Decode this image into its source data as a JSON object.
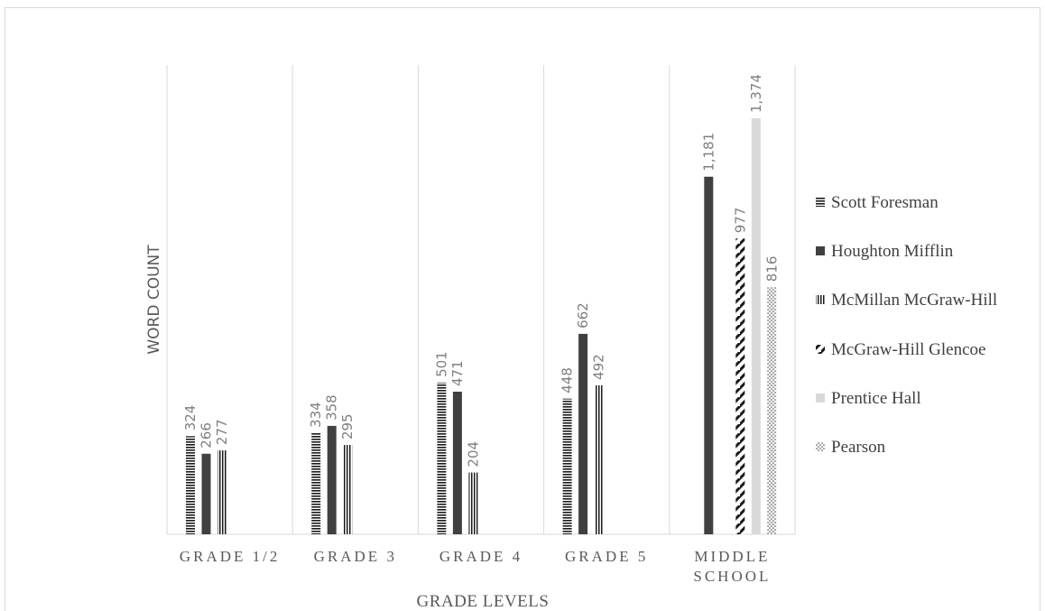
{
  "chart_data": {
    "type": "bar",
    "title": "",
    "xlabel": "GRADE LEVELS",
    "ylabel": "WORD COUNT",
    "ylim": [
      0,
      1550
    ],
    "grid": false,
    "legend_position": "right",
    "categories": [
      "GRADE 1/2",
      "GRADE 3",
      "GRADE 4",
      "GRADE 5",
      "MIDDLE SCHOOL"
    ],
    "series": [
      {
        "name": "Scott Foresman",
        "values": [
          324,
          334,
          501,
          448,
          null
        ],
        "value_labels": [
          "324",
          "334",
          "501",
          "448",
          ""
        ]
      },
      {
        "name": "Houghton Mifflin",
        "values": [
          266,
          358,
          471,
          662,
          1181
        ],
        "value_labels": [
          "266",
          "358",
          "471",
          "662",
          "1,181"
        ]
      },
      {
        "name": "McMillan McGraw-Hill",
        "values": [
          277,
          295,
          204,
          492,
          null
        ],
        "value_labels": [
          "277",
          "295",
          "204",
          "492",
          ""
        ]
      },
      {
        "name": "McGraw-Hill Glencoe",
        "values": [
          null,
          null,
          null,
          null,
          977
        ],
        "value_labels": [
          "",
          "",
          "",
          "",
          "977"
        ]
      },
      {
        "name": "Prentice Hall",
        "values": [
          null,
          null,
          null,
          null,
          1374
        ],
        "value_labels": [
          "",
          "",
          "",
          "",
          "1,374"
        ]
      },
      {
        "name": "Pearson",
        "values": [
          null,
          null,
          null,
          null,
          816
        ],
        "value_labels": [
          "",
          "",
          "",
          "",
          "816"
        ]
      }
    ]
  }
}
